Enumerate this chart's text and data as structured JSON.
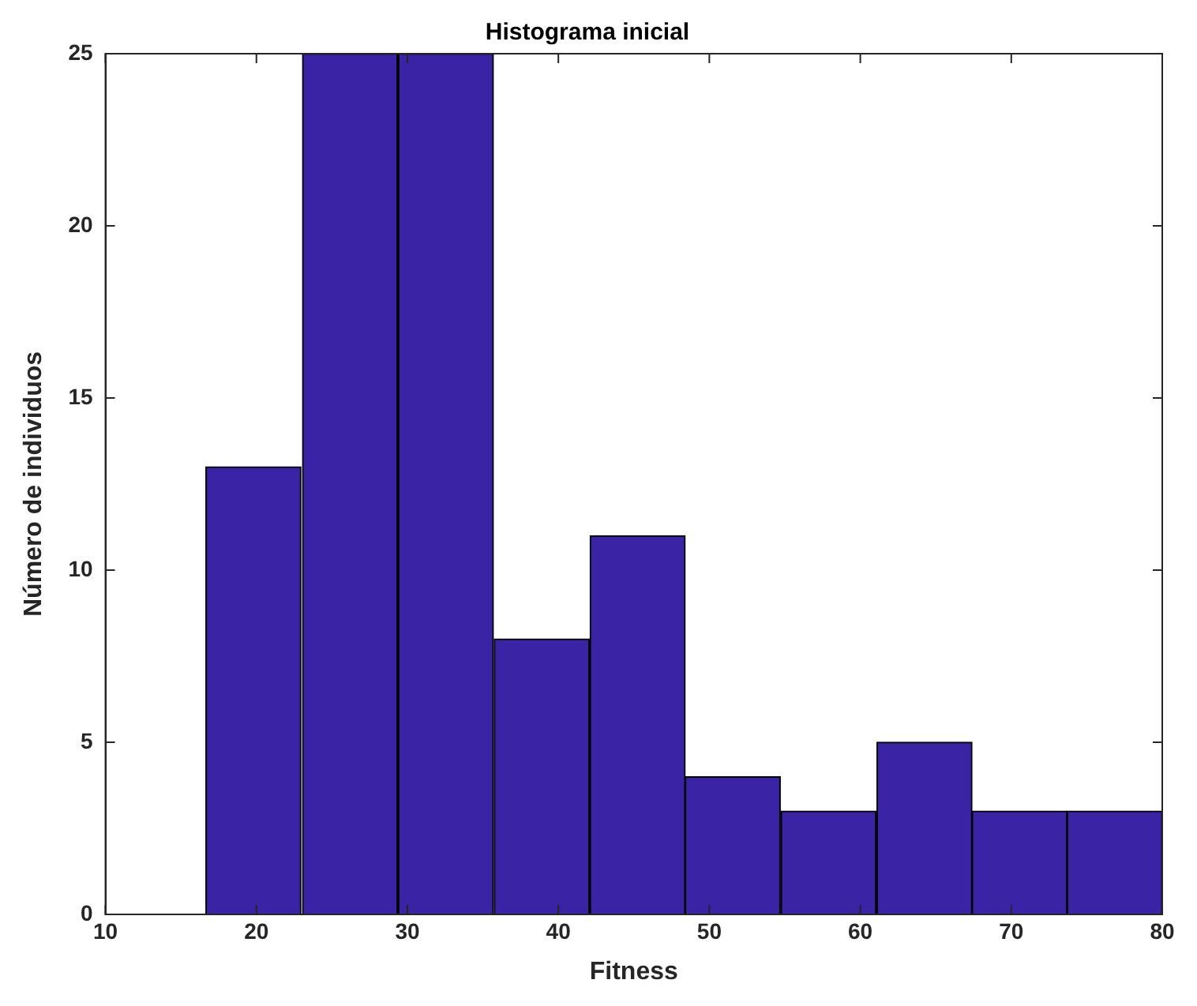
{
  "chart_data": {
    "type": "histogram",
    "title": "Histograma inicial",
    "xlabel": "Fitness",
    "ylabel": "Número de individuos",
    "bins": [
      16.6,
      23.0,
      29.4,
      35.7,
      42.1,
      48.4,
      54.7,
      61.1,
      67.4,
      73.7,
      80.0
    ],
    "values": [
      13,
      25,
      25,
      8,
      11,
      4,
      3,
      5,
      3,
      3
    ],
    "color": "#3a23a5",
    "xlim": [
      10,
      80
    ],
    "xticks": [
      10,
      20,
      30,
      40,
      50,
      60,
      70,
      80
    ],
    "ylim": [
      0,
      25
    ],
    "yticks": [
      0,
      5,
      10,
      15,
      20,
      25
    ],
    "grid": false,
    "legend": false
  }
}
